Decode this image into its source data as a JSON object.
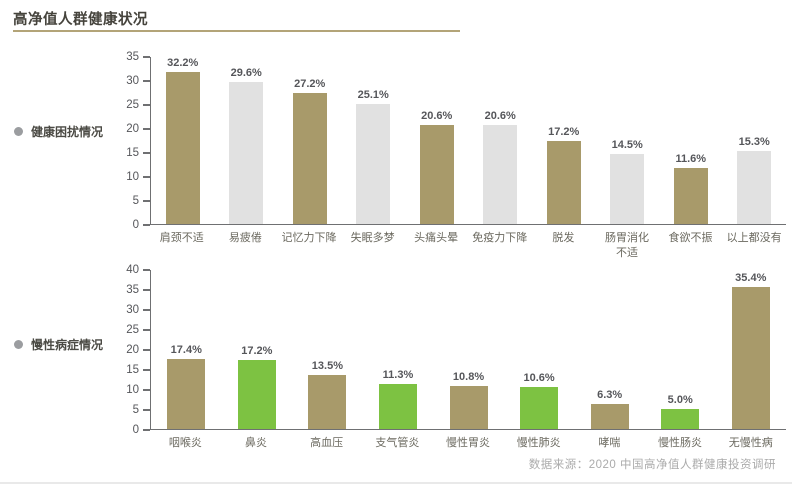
{
  "page": {
    "title": "高净值人群健康状况",
    "source": "数据来源：2020 中国高净值人群健康投资调研"
  },
  "sections": [
    {
      "label": "健康困扰情况"
    },
    {
      "label": "慢性病症情况"
    }
  ],
  "colors": {
    "tan": "#a89a6a",
    "gray": "#e1e1e1",
    "green": "#7dc242",
    "axis": "#6f7072",
    "accent_line": "#b3a478"
  },
  "chart_data": [
    {
      "type": "bar",
      "title": "健康困扰情况",
      "categories": [
        "肩颈不适",
        "易疲倦",
        "记忆力下降",
        "失眠多梦",
        "头痛头晕",
        "免疫力下降",
        "脱发",
        "肠胃消化\n不适",
        "食欲不振",
        "以上都没有"
      ],
      "values": [
        32.2,
        29.6,
        27.2,
        25.1,
        20.6,
        20.6,
        17.2,
        14.5,
        11.6,
        15.3
      ],
      "labels": [
        "32.2%",
        "29.6%",
        "27.2%",
        "25.1%",
        "20.6%",
        "20.6%",
        "17.2%",
        "14.5%",
        "11.6%",
        "15.3%"
      ],
      "bar_colors": [
        "tan",
        "gray",
        "tan",
        "gray",
        "tan",
        "gray",
        "tan",
        "gray",
        "tan",
        "gray"
      ],
      "xlabel": "",
      "ylabel": "",
      "ylim": [
        0,
        35
      ],
      "tick_step": 5,
      "grid": false,
      "legend": "none"
    },
    {
      "type": "bar",
      "title": "慢性病症情况",
      "categories": [
        "咽喉炎",
        "鼻炎",
        "高血压",
        "支气管炎",
        "慢性胃炎",
        "慢性肺炎",
        "哮喘",
        "慢性肠炎",
        "无慢性病"
      ],
      "values": [
        17.4,
        17.2,
        13.5,
        11.3,
        10.8,
        10.6,
        6.3,
        5.0,
        35.4
      ],
      "labels": [
        "17.4%",
        "17.2%",
        "13.5%",
        "11.3%",
        "10.8%",
        "10.6%",
        "6.3%",
        "5.0%",
        "35.4%"
      ],
      "bar_colors": [
        "tan",
        "green",
        "tan",
        "green",
        "tan",
        "green",
        "tan",
        "green",
        "tan"
      ],
      "xlabel": "",
      "ylabel": "",
      "ylim": [
        0,
        40
      ],
      "tick_step": 5,
      "grid": false,
      "legend": "none"
    }
  ]
}
